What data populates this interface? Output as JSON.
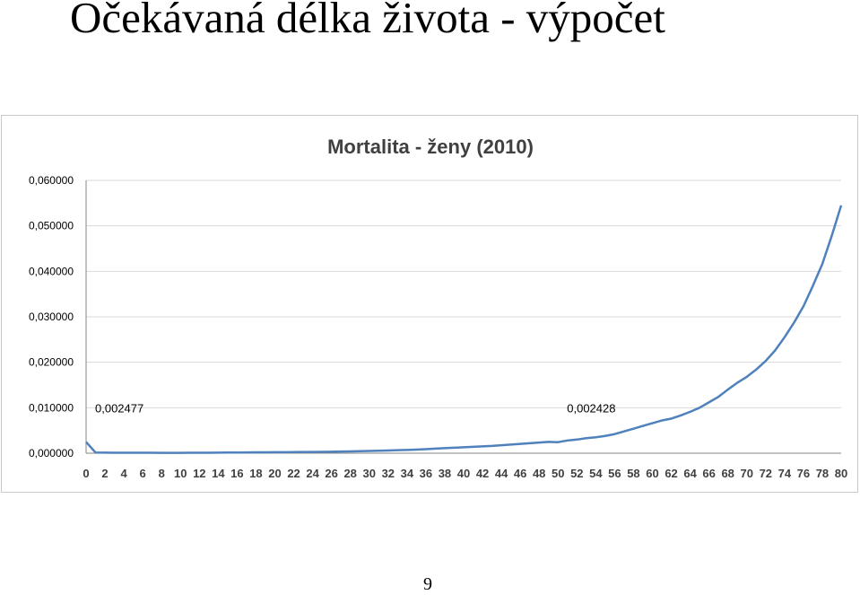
{
  "slide": {
    "title": "Očekávaná délka života - výpočet",
    "page_number": "9"
  },
  "chart_data": {
    "type": "line",
    "title": "Mortalita - ženy (2010)",
    "xlabel": "",
    "ylabel": "",
    "x": [
      0,
      1,
      2,
      3,
      4,
      5,
      6,
      7,
      8,
      9,
      10,
      11,
      12,
      13,
      14,
      15,
      16,
      17,
      18,
      19,
      20,
      21,
      22,
      23,
      24,
      25,
      26,
      27,
      28,
      29,
      30,
      31,
      32,
      33,
      34,
      35,
      36,
      37,
      38,
      39,
      40,
      41,
      42,
      43,
      44,
      45,
      46,
      47,
      48,
      49,
      50,
      51,
      52,
      53,
      54,
      55,
      56,
      57,
      58,
      59,
      60,
      61,
      62,
      63,
      64,
      65,
      66,
      67,
      68,
      69,
      70,
      71,
      72,
      73,
      74,
      75,
      76,
      77,
      78,
      79,
      80
    ],
    "x_tick_labels": [
      "0",
      "2",
      "4",
      "6",
      "8",
      "10",
      "12",
      "14",
      "16",
      "18",
      "20",
      "22",
      "24",
      "26",
      "28",
      "30",
      "32",
      "34",
      "36",
      "38",
      "40",
      "42",
      "44",
      "46",
      "48",
      "50",
      "52",
      "54",
      "56",
      "58",
      "60",
      "62",
      "64",
      "66",
      "68",
      "70",
      "72",
      "74",
      "76",
      "78",
      "80"
    ],
    "series": [
      {
        "name": "",
        "color": "#4f81bd",
        "values": [
          0.002477,
          0.00015,
          0.00012,
          0.0001,
          0.0001,
          0.0001,
          0.0001,
          9e-05,
          8e-05,
          8e-05,
          8e-05,
          9e-05,
          0.0001,
          0.00011,
          0.00012,
          0.00014,
          0.00016,
          0.00018,
          0.0002,
          0.00021,
          0.00022,
          0.00023,
          0.00024,
          0.00026,
          0.00028,
          0.0003,
          0.00033,
          0.00036,
          0.0004,
          0.00044,
          0.00049,
          0.00055,
          0.0006,
          0.00066,
          0.00072,
          0.0008,
          0.0009,
          0.001,
          0.0011,
          0.0012,
          0.0013,
          0.0014,
          0.0015,
          0.0016,
          0.00175,
          0.0019,
          0.00205,
          0.0022,
          0.00235,
          0.0025,
          0.002428,
          0.0028,
          0.003,
          0.0033,
          0.0035,
          0.0038,
          0.0042,
          0.0048,
          0.0054,
          0.006,
          0.0066,
          0.0072,
          0.0076,
          0.0083,
          0.0091,
          0.01,
          0.0112,
          0.0124,
          0.014,
          0.0155,
          0.0168,
          0.0184,
          0.0203,
          0.0226,
          0.0255,
          0.0287,
          0.0323,
          0.0368,
          0.0416,
          0.0478,
          0.0545
        ]
      }
    ],
    "y_tick_labels": [
      "0,000000",
      "0,010000",
      "0,020000",
      "0,030000",
      "0,040000",
      "0,050000",
      "0,060000"
    ],
    "ylim": [
      0,
      0.06
    ],
    "xlim": [
      0,
      80
    ],
    "grid": true,
    "legend": "none",
    "annotations": [
      {
        "x": 0,
        "y": 0.002477,
        "text": "0,002477"
      },
      {
        "x": 50,
        "y": 0.002428,
        "text": "0,002428"
      }
    ]
  }
}
